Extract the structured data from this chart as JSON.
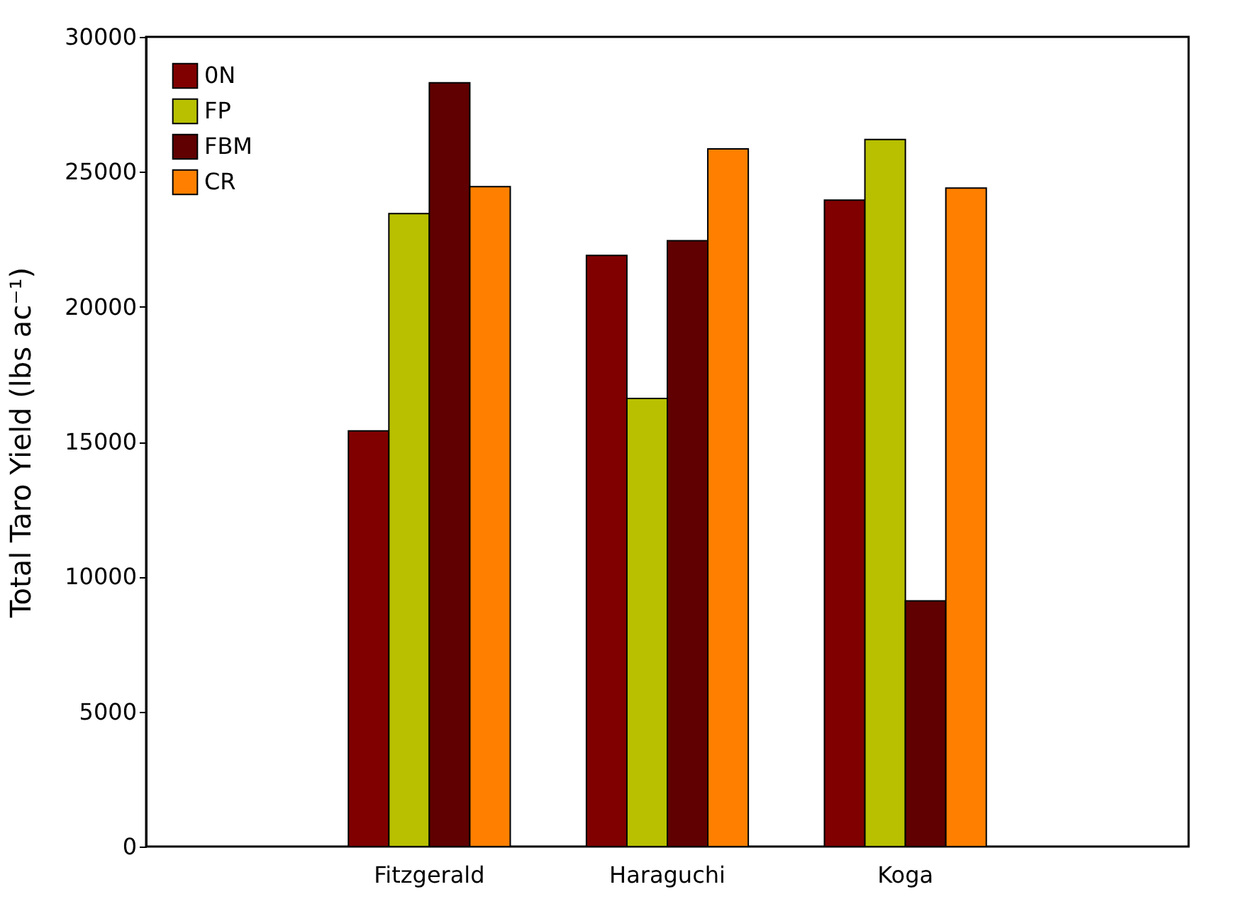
{
  "chart_data": {
    "type": "bar",
    "ylabel": "Total Taro Yield (lbs ac⁻¹)",
    "categories": [
      "Fitzgerald",
      "Haraguchi",
      "Koga"
    ],
    "series": [
      {
        "name": "0N",
        "color": "#800000",
        "values": [
          15400,
          21900,
          23950
        ]
      },
      {
        "name": "FP",
        "color": "#b8c000",
        "values": [
          23450,
          16600,
          26200
        ]
      },
      {
        "name": "FBM",
        "color": "#600000",
        "values": [
          28300,
          22450,
          9100
        ]
      },
      {
        "name": "CR",
        "color": "#ff8000",
        "values": [
          24450,
          25850,
          24400
        ]
      }
    ],
    "ylim": [
      0,
      30000
    ],
    "yticks": [
      0,
      5000,
      10000,
      15000,
      20000,
      25000,
      30000
    ],
    "grid": false,
    "legend": "top left"
  }
}
